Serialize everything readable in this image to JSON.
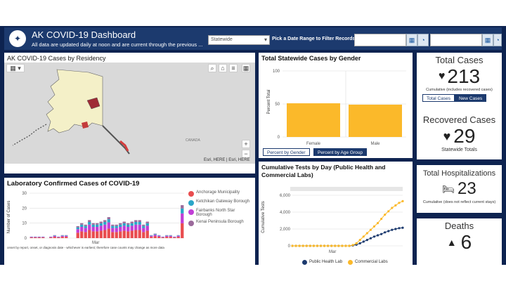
{
  "header": {
    "title": "AK COVID-19 Dashboard",
    "subtitle": "All data are updated daily at noon and are current through the previous ...",
    "region_select": "Statewide",
    "date_prompt": "Pick a Date Range to Filter Records"
  },
  "map": {
    "title": "AK COVID-19 Cases by Residency",
    "attribution": "Esri, HERE | Esri, HERE",
    "country_label": "CANADA",
    "zoom_in": "+",
    "zoom_out": "−"
  },
  "gender_chart": {
    "title": "Total Statewide Cases by Gender",
    "tab_gender": "Percent by Gender",
    "tab_age": "Percent by Age Group"
  },
  "lab_chart": {
    "title": "Laboratory Confirmed Cases of COVID-19",
    "ylabel": "Number of Cases",
    "month": "Mar",
    "footnote": "onset by report, onset, or diagnosis date - whichever is earliest; therefore case counts may change as more data",
    "legend": [
      "Anchorage Municipality",
      "Ketchikan Gateway Borough",
      "Fairbanks North Star Borough",
      "Kenai Peninsula Borough"
    ]
  },
  "tests_chart": {
    "title": "Cumulative Tests by Day (Public Health and Commercial Labs)",
    "ylabel": "Cumulative Tests",
    "month": "Mar",
    "legend": [
      "Public Health Lab",
      "Commercial Labs"
    ]
  },
  "kpis": {
    "total_label": "Total Cases",
    "total_value": "213",
    "total_note": "Cumulative (includes recovered cases)",
    "tab_total": "Total Cases",
    "tab_new": "New Cases",
    "recovered_label": "Recovered Cases",
    "recovered_value": "29",
    "recovered_note": "Statewide Totals",
    "hosp_label": "Total Hospitalizations",
    "hosp_value": "23",
    "hosp_note": "Cumulative (does not reflect current stays)",
    "deaths_label": "Deaths",
    "deaths_value": "6"
  },
  "colors": {
    "navy": "#0d2350",
    "header": "#1c3a6e",
    "bar": "#fbb92a",
    "public_lab": "#1c3a6e",
    "commercial_lab": "#fbb92a",
    "anchorage": "#e94d4f",
    "ketchikan": "#2aa6c8",
    "fairbanks": "#c13fd6",
    "kenai": "#9b6a9b"
  },
  "chart_data": [
    {
      "type": "bar",
      "title": "Total Statewide Cases by Gender",
      "categories": [
        "Female",
        "Male"
      ],
      "values": [
        51,
        49
      ],
      "ylabel": "Percent Total",
      "ylim": [
        0,
        100
      ],
      "yticks": [
        0,
        50,
        100
      ]
    },
    {
      "type": "line",
      "title": "Cumulative Tests by Day (Public Health and Commercial Labs)",
      "ylabel": "Cumulative Tests",
      "ylim": [
        0,
        6000
      ],
      "yticks": [
        "0",
        "2,000",
        "4,000",
        "6,000"
      ],
      "series": [
        {
          "name": "Public Health Lab",
          "values": [
            0,
            0,
            0,
            0,
            0,
            0,
            0,
            0,
            0,
            0,
            0,
            0,
            0,
            0,
            0,
            0,
            0,
            50,
            150,
            300,
            500,
            700,
            900,
            1100,
            1250,
            1400,
            1600,
            1750,
            1900,
            2000,
            2100,
            2150
          ]
        },
        {
          "name": "Commercial Labs",
          "values": [
            0,
            0,
            0,
            0,
            0,
            0,
            0,
            0,
            0,
            0,
            0,
            0,
            0,
            0,
            0,
            0,
            0,
            100,
            300,
            700,
            1100,
            1500,
            1900,
            2300,
            2700,
            3200,
            3700,
            4100,
            4500,
            4800,
            5100,
            5300
          ]
        }
      ]
    },
    {
      "type": "bar",
      "title": "Laboratory Confirmed Cases of COVID-19",
      "ylabel": "Number of Cases",
      "ylim": [
        0,
        30
      ],
      "yticks": [
        0,
        10,
        20,
        30
      ],
      "values": [
        1,
        1,
        1,
        1,
        0,
        1,
        2,
        1,
        2,
        2,
        0,
        0,
        8,
        10,
        9,
        12,
        10,
        10,
        11,
        12,
        14,
        9,
        9,
        10,
        11,
        10,
        11,
        12,
        12,
        9,
        11,
        2,
        3,
        2,
        1,
        2,
        2,
        1,
        2,
        22
      ]
    }
  ]
}
